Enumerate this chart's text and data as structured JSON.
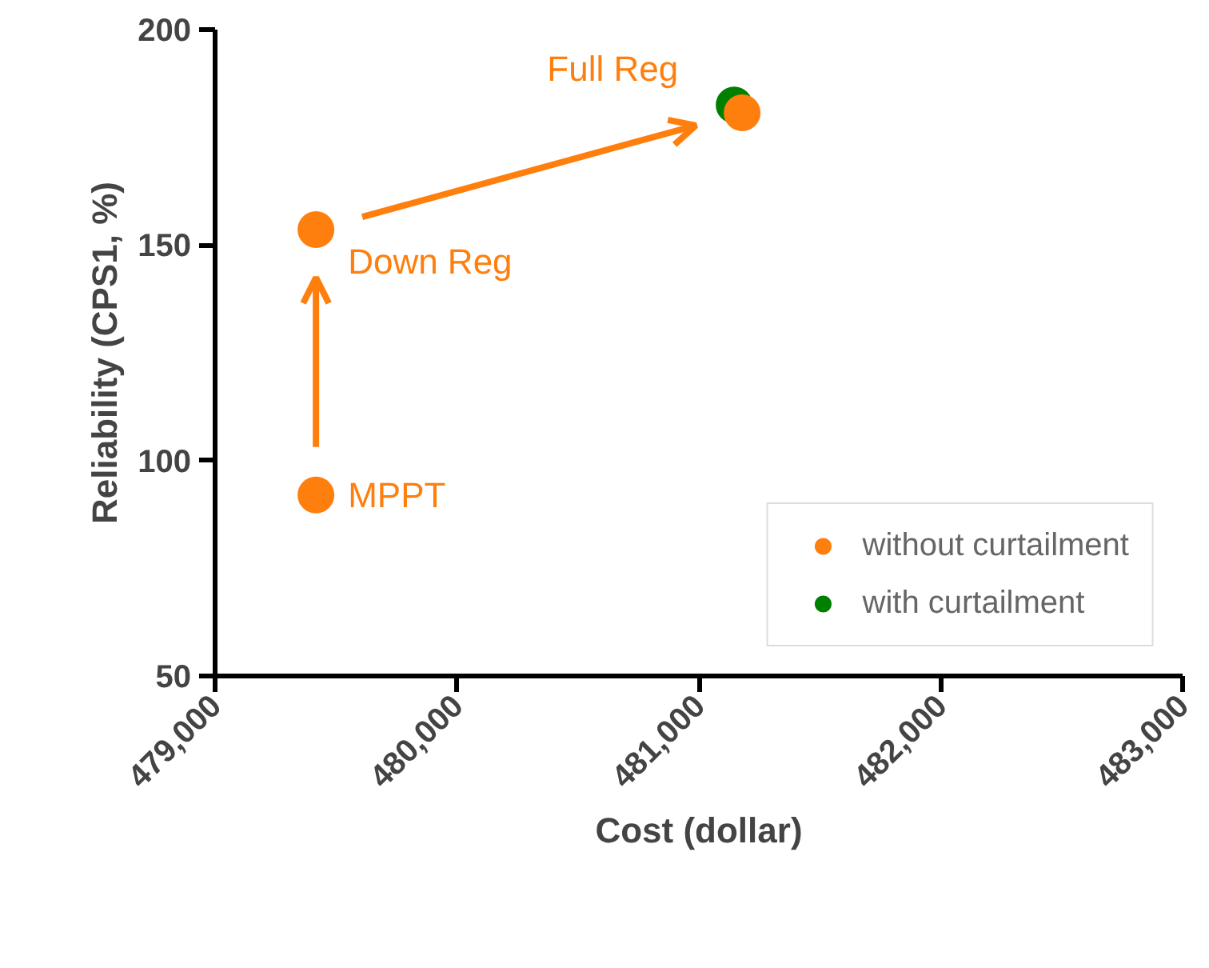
{
  "chart_data": {
    "type": "scatter",
    "xlabel": "Cost (dollar)",
    "ylabel": "Reliability (CPS1, %)",
    "series": [
      {
        "name": "without curtailment",
        "color": "#ff7f0e",
        "x": [
          479417,
          479417,
          481179
        ],
        "values": [
          92,
          153.6,
          180.7
        ]
      },
      {
        "name": "with curtailment",
        "color": "#008000",
        "x": [
          481146
        ],
        "values": [
          182.5
        ]
      }
    ],
    "xlim": [
      479000,
      483000
    ],
    "xticks": [
      {
        "value": 479000,
        "label": "479,000"
      },
      {
        "value": 480000,
        "label": "480,000"
      },
      {
        "value": 481000,
        "label": "481,000"
      },
      {
        "value": 482000,
        "label": "482,000"
      },
      {
        "value": 483000,
        "label": "483,000"
      }
    ],
    "ylim": [
      50,
      200
    ],
    "yticks": [
      50,
      100,
      150,
      200
    ],
    "annotations": [
      "MPPT",
      "Down Reg",
      "Full Reg"
    ],
    "grid": false,
    "legend": "bottom right",
    "marker": "circle"
  }
}
